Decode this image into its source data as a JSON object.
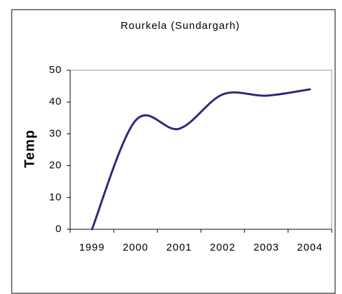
{
  "chart_data": {
    "type": "line",
    "title": "Rourkela (Sundargarh)",
    "y_label": "Temp",
    "categories": [
      "1999",
      "2000",
      "2001",
      "2002",
      "2003",
      "2004"
    ],
    "values": [
      0,
      34.2,
      31.6,
      42.4,
      42,
      44
    ],
    "color": "#2b2878",
    "ylim": [
      0,
      50
    ],
    "yticks": [
      0,
      10,
      20,
      30,
      40,
      50
    ],
    "smooth": true
  }
}
